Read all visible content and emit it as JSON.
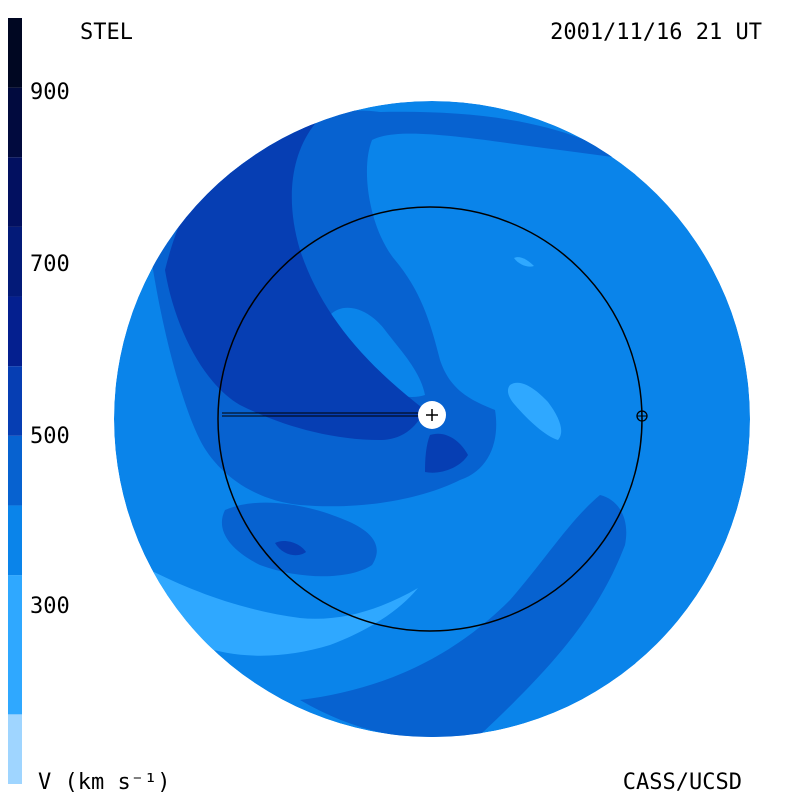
{
  "header": {
    "observatory": "STEL",
    "timestamp": "2001/11/16 21 UT"
  },
  "footer": {
    "units": "V (km s⁻¹)",
    "credit": "CASS/UCSD"
  },
  "colorbar": {
    "tick_labels": [
      "900",
      "700",
      "500",
      "300"
    ],
    "bands": [
      {
        "from": 0,
        "to": 100,
        "color": "#9fd5ff"
      },
      {
        "from": 100,
        "to": 300,
        "color": "#2fa8ff"
      },
      {
        "from": 300,
        "to": 400,
        "color": "#0a84ea"
      },
      {
        "from": 400,
        "to": 500,
        "color": "#0762d0"
      },
      {
        "from": 500,
        "to": 600,
        "color": "#063eb3"
      },
      {
        "from": 600,
        "to": 700,
        "color": "#041f8f"
      },
      {
        "from": 700,
        "to": 800,
        "color": "#031a78"
      },
      {
        "from": 800,
        "to": 900,
        "color": "#021060"
      },
      {
        "from": 900,
        "to": 1000,
        "color": "#010a3e"
      },
      {
        "from": 1000,
        "to": 1100,
        "color": "#000722"
      }
    ]
  },
  "colors": {
    "level_200_300": "#2fa8ff",
    "level_300_400": "#0a84ea",
    "level_400_500": "#0762d0",
    "level_500_600": "#063eb3",
    "level_600_700": "#041f8f"
  }
}
